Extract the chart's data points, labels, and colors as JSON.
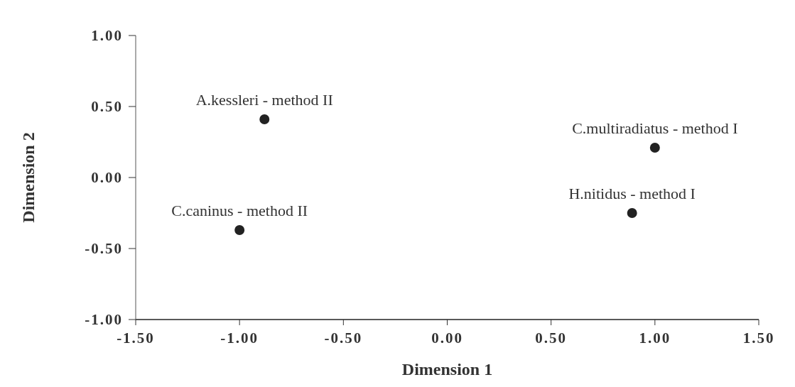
{
  "chart_data": {
    "type": "scatter",
    "xlabel": "Dimension  1",
    "ylabel": "Dimension  2",
    "x": [
      -0.88,
      -1.0,
      1.0,
      0.89
    ],
    "series": [
      {
        "color": "#222222",
        "values": [
          0.41,
          -0.37,
          0.21,
          -0.25
        ]
      }
    ],
    "marker": "circle",
    "xlim": [
      -1.5,
      1.5
    ],
    "xticks": [
      {
        "value": -1.5,
        "label": "-1.50"
      },
      {
        "value": -1.0,
        "label": "-1.00"
      },
      {
        "value": -0.5,
        "label": "-0.50"
      },
      {
        "value": 0,
        "label": "0.00"
      },
      {
        "value": 0.5,
        "label": "0.50"
      },
      {
        "value": 1.0,
        "label": "1.00"
      },
      {
        "value": 1.5,
        "label": "1.50"
      }
    ],
    "ylim": [
      -1.0,
      1.0
    ],
    "yticks": [
      {
        "value": -1.0,
        "label": "-1.00"
      },
      {
        "value": -0.5,
        "label": "-0.50"
      },
      {
        "value": 0,
        "label": "0.00"
      },
      {
        "value": 0.5,
        "label": "0.50"
      },
      {
        "value": 1.0,
        "label": "1.00"
      }
    ],
    "annotations": [
      {
        "text": "A.kessleri - method II",
        "x": -0.88,
        "y": 0.41
      },
      {
        "text": "C.caninus - method II",
        "x": -1.0,
        "y": -0.37
      },
      {
        "text": "C.multiradiatus - method I",
        "x": 1.0,
        "y": 0.21
      },
      {
        "text": "H.nitidus - method I",
        "x": 0.89,
        "y": -0.25
      }
    ]
  }
}
